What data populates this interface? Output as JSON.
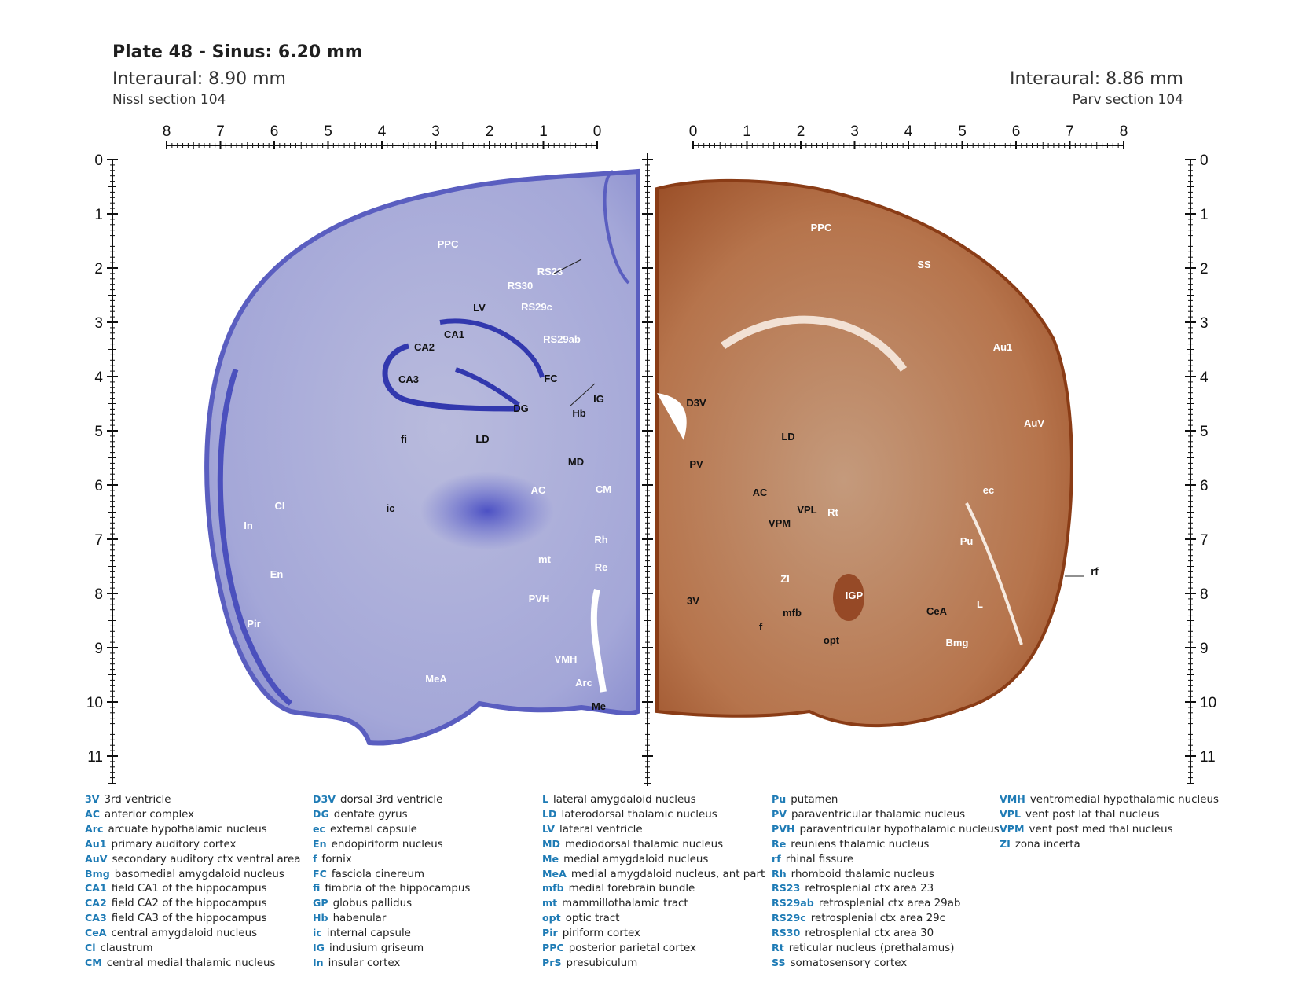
{
  "header": {
    "title": "Plate 48 - Sinus: 6.20 mm",
    "left": {
      "interaural": "Interaural: 8.90 mm",
      "section": "Nissl section 104"
    },
    "right": {
      "interaural": "Interaural: 8.86 mm",
      "section": "Parv section 104"
    }
  },
  "colors": {
    "nissl_stain": "#6b6fc4",
    "parv_stain": "#a4572d",
    "legend_abbrev": "#1e7bb5"
  },
  "scales": {
    "top_left_ticks": [
      "8",
      "7",
      "6",
      "5",
      "4",
      "3",
      "2",
      "1",
      "0"
    ],
    "top_right_ticks": [
      "0",
      "1",
      "2",
      "3",
      "4",
      "5",
      "6",
      "7",
      "8"
    ],
    "side_ticks": [
      "0",
      "1",
      "2",
      "3",
      "4",
      "5",
      "6",
      "7",
      "8",
      "9",
      "10",
      "11"
    ]
  },
  "labels": {
    "left": [
      {
        "t": "PPC"
      },
      {
        "t": "RS23"
      },
      {
        "t": "RS30"
      },
      {
        "t": "RS29c"
      },
      {
        "t": "LV"
      },
      {
        "t": "CA1"
      },
      {
        "t": "CA2"
      },
      {
        "t": "RS29ab"
      },
      {
        "t": "CA3"
      },
      {
        "t": "FC"
      },
      {
        "t": "IG"
      },
      {
        "t": "DG"
      },
      {
        "t": "Hb"
      },
      {
        "t": "fi"
      },
      {
        "t": "LD"
      },
      {
        "t": "MD"
      },
      {
        "t": "CM"
      },
      {
        "t": "AC"
      },
      {
        "t": "Cl"
      },
      {
        "t": "ic"
      },
      {
        "t": "In"
      },
      {
        "t": "Rh"
      },
      {
        "t": "mt"
      },
      {
        "t": "Re"
      },
      {
        "t": "En"
      },
      {
        "t": "PVH"
      },
      {
        "t": "Pir"
      },
      {
        "t": "VMH"
      },
      {
        "t": "MeA"
      },
      {
        "t": "Arc"
      },
      {
        "t": "Me"
      }
    ],
    "right": [
      {
        "t": "PPC"
      },
      {
        "t": "SS"
      },
      {
        "t": "Au1"
      },
      {
        "t": "D3V"
      },
      {
        "t": "AuV"
      },
      {
        "t": "LD"
      },
      {
        "t": "PV"
      },
      {
        "t": "ec"
      },
      {
        "t": "AC"
      },
      {
        "t": "VPL"
      },
      {
        "t": "Rt"
      },
      {
        "t": "VPM"
      },
      {
        "t": "Pu"
      },
      {
        "t": "rf"
      },
      {
        "t": "ZI"
      },
      {
        "t": "IGP"
      },
      {
        "t": "3V"
      },
      {
        "t": "mfb"
      },
      {
        "t": "CeA"
      },
      {
        "t": "L"
      },
      {
        "t": "f"
      },
      {
        "t": "opt"
      },
      {
        "t": "Bmg"
      }
    ]
  },
  "legend": {
    "columns": [
      [
        {
          "ab": "3V",
          "desc": "3rd ventricle"
        },
        {
          "ab": "AC",
          "desc": "anterior complex"
        },
        {
          "ab": "Arc",
          "desc": "arcuate hypothalamic nucleus"
        },
        {
          "ab": "Au1",
          "desc": "primary auditory cortex"
        },
        {
          "ab": "AuV",
          "desc": "secondary auditory ctx ventral area"
        },
        {
          "ab": "Bmg",
          "desc": "basomedial amygdaloid nucleus"
        },
        {
          "ab": "CA1",
          "desc": "field CA1 of the hippocampus"
        },
        {
          "ab": "CA2",
          "desc": "field CA2 of the hippocampus"
        },
        {
          "ab": "CA3",
          "desc": "field CA3 of the hippocampus"
        },
        {
          "ab": "CeA",
          "desc": "central amygdaloid nucleus"
        },
        {
          "ab": "Cl",
          "desc": "claustrum"
        },
        {
          "ab": "CM",
          "desc": "central medial thalamic nucleus"
        }
      ],
      [
        {
          "ab": "D3V",
          "desc": "dorsal 3rd ventricle"
        },
        {
          "ab": "DG",
          "desc": "dentate gyrus"
        },
        {
          "ab": "ec",
          "desc": "external capsule"
        },
        {
          "ab": "En",
          "desc": "endopiriform nucleus"
        },
        {
          "ab": "f",
          "desc": "fornix"
        },
        {
          "ab": "FC",
          "desc": "fasciola cinereum"
        },
        {
          "ab": "fi",
          "desc": "fimbria of the hippocampus"
        },
        {
          "ab": "GP",
          "desc": "globus pallidus"
        },
        {
          "ab": "Hb",
          "desc": "habenular"
        },
        {
          "ab": "ic",
          "desc": "internal capsule"
        },
        {
          "ab": "IG",
          "desc": "indusium griseum"
        },
        {
          "ab": "In",
          "desc": "insular cortex"
        }
      ],
      [
        {
          "ab": "L",
          "desc": "lateral amygdaloid nucleus"
        },
        {
          "ab": "LD",
          "desc": "laterodorsal thalamic nucleus"
        },
        {
          "ab": "LV",
          "desc": "lateral ventricle"
        },
        {
          "ab": "MD",
          "desc": "mediodorsal thalamic nucleus"
        },
        {
          "ab": "Me",
          "desc": "medial amygdaloid nucleus"
        },
        {
          "ab": "MeA",
          "desc": "medial amygdaloid nucleus, ant part"
        },
        {
          "ab": "mfb",
          "desc": "medial forebrain bundle"
        },
        {
          "ab": "mt",
          "desc": "mammillothalamic tract"
        },
        {
          "ab": "opt",
          "desc": "optic tract"
        },
        {
          "ab": "Pir",
          "desc": "piriform cortex"
        },
        {
          "ab": "PPC",
          "desc": "posterior parietal cortex"
        },
        {
          "ab": "PrS",
          "desc": "presubiculum"
        }
      ],
      [
        {
          "ab": "Pu",
          "desc": "putamen"
        },
        {
          "ab": "PV",
          "desc": "paraventricular thalamic nucleus"
        },
        {
          "ab": "PVH",
          "desc": "paraventricular hypothalamic nucleus"
        },
        {
          "ab": "Re",
          "desc": "reuniens thalamic nucleus"
        },
        {
          "ab": "rf",
          "desc": "rhinal fissure"
        },
        {
          "ab": "Rh",
          "desc": "rhomboid thalamic nucleus"
        },
        {
          "ab": "RS23",
          "desc": "retrosplenial ctx area 23"
        },
        {
          "ab": "RS29ab",
          "desc": "retrosplenial ctx area 29ab"
        },
        {
          "ab": "RS29c",
          "desc": "retrosplenial ctx area 29c"
        },
        {
          "ab": "RS30",
          "desc": "retrosplenial ctx area 30"
        },
        {
          "ab": "Rt",
          "desc": "reticular nucleus (prethalamus)"
        },
        {
          "ab": "SS",
          "desc": "somatosensory cortex"
        }
      ],
      [
        {
          "ab": "VMH",
          "desc": "ventromedial hypothalamic nucleus"
        },
        {
          "ab": "VPL",
          "desc": "vent post lat thal nucleus"
        },
        {
          "ab": "VPM",
          "desc": "vent post med thal nucleus"
        },
        {
          "ab": "ZI",
          "desc": "zona incerta"
        }
      ]
    ]
  }
}
